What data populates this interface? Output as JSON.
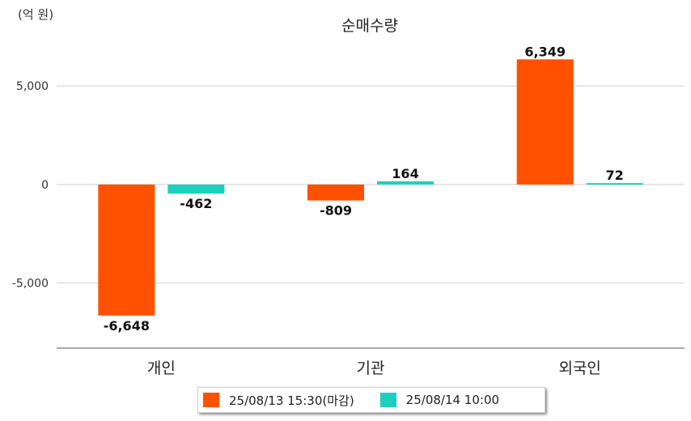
{
  "chart_data": {
    "type": "bar",
    "title": "순매수량",
    "unit_label": "(억 원)",
    "categories": [
      "개인",
      "기관",
      "외국인"
    ],
    "series": [
      {
        "name": "25/08/13 15:30(마감)",
        "values": [
          -6648,
          -809,
          6349
        ],
        "value_labels": [
          "-6,648",
          "-809",
          "6,349"
        ],
        "color": "#ff5100"
      },
      {
        "name": "25/08/14 10:00",
        "values": [
          -462,
          164,
          72
        ],
        "value_labels": [
          "-462",
          "164",
          "72"
        ],
        "color": "#1fcfbd"
      }
    ],
    "yticks": [
      5000,
      0,
      -5000
    ],
    "ytick_labels": [
      "5,000",
      "0",
      "-5,000"
    ],
    "ylim": [
      -8300,
      7800
    ],
    "grid": true,
    "legend_position": "bottom"
  }
}
